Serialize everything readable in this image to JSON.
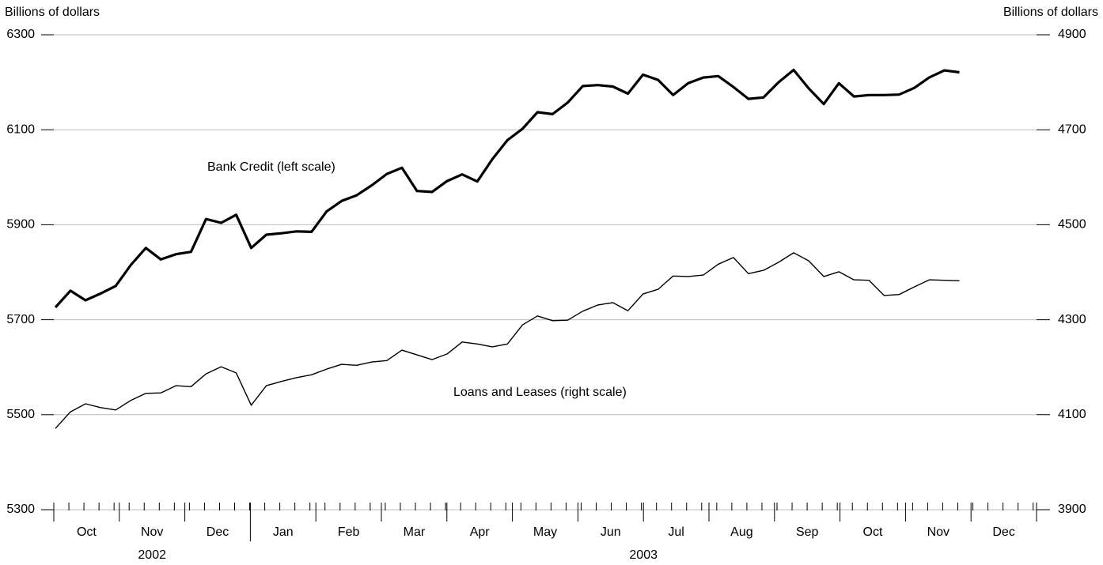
{
  "chart_data": {
    "type": "line",
    "y_label": "Billions of dollars",
    "y2_label": "Billions of dollars",
    "months": [
      "Oct",
      "Nov",
      "Dec",
      "Jan",
      "Feb",
      "Mar",
      "Apr",
      "May",
      "Jun",
      "Jul",
      "Aug",
      "Sep",
      "Oct",
      "Nov",
      "Dec"
    ],
    "years": [
      "2002",
      "2003"
    ],
    "ylim": [
      5300,
      6300
    ],
    "yticks": [
      5300,
      5500,
      5700,
      5900,
      6100,
      6300
    ],
    "y2lim": [
      3900,
      4900
    ],
    "y2ticks": [
      3900,
      4100,
      4300,
      4500,
      4700,
      4900
    ],
    "grid": true,
    "series": [
      {
        "name": "Bank Credit (left scale)",
        "color": "#000000",
        "axis": "y",
        "values": [
          5726,
          5761,
          5741,
          5755,
          5771,
          5815,
          5851,
          5827,
          5838,
          5843,
          5912,
          5904,
          5921,
          5851,
          5879,
          5882,
          5886,
          5885,
          5928,
          5950,
          5962,
          5983,
          6007,
          6020,
          5971,
          5969,
          5992,
          6006,
          5991,
          6038,
          6078,
          6102,
          6137,
          6133,
          6157,
          6192,
          6194,
          6191,
          6176,
          6216,
          6205,
          6173,
          6198,
          6210,
          6213,
          6190,
          6165,
          6168,
          6200,
          6226,
          6187,
          6154,
          6198,
          6170,
          6173,
          6173,
          6174,
          6188,
          6210,
          6225,
          6221
        ]
      },
      {
        "name": "Loans and Leases (right scale)",
        "color": "#000000",
        "axis": "y2",
        "values": [
          4071,
          4106,
          4123,
          4115,
          4110,
          4130,
          4145,
          4146,
          4161,
          4159,
          4186,
          4201,
          4188,
          4120,
          4161,
          4170,
          4178,
          4184,
          4196,
          4206,
          4204,
          4211,
          4214,
          4236,
          4226,
          4216,
          4228,
          4253,
          4249,
          4243,
          4249,
          4289,
          4308,
          4298,
          4299,
          4318,
          4331,
          4336,
          4319,
          4354,
          4364,
          4392,
          4391,
          4394,
          4417,
          4431,
          4397,
          4404,
          4421,
          4441,
          4424,
          4391,
          4401,
          4384,
          4383,
          4351,
          4353,
          4369,
          4384,
          4383,
          4382
        ]
      }
    ]
  }
}
